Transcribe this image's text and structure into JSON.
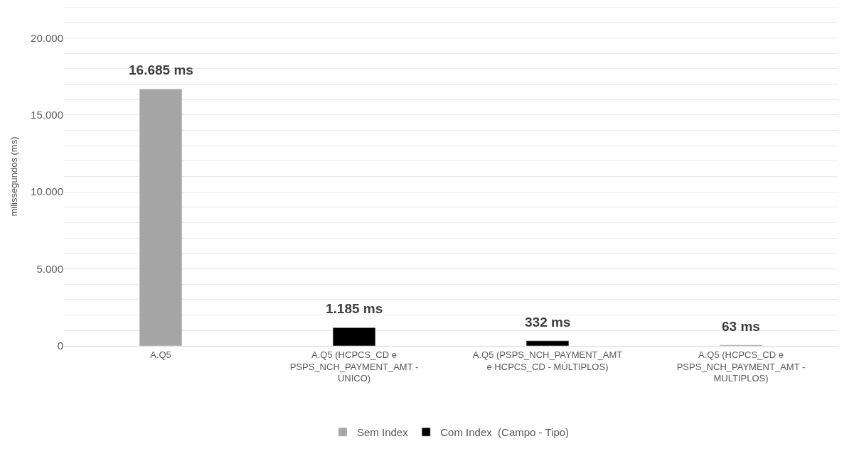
{
  "chart_data": {
    "type": "bar",
    "ylabel": "milissegundos (ms)",
    "categories": [
      "A.Q5",
      "A.Q5 (HCPCS_CD e PSPS_NCH_PAYMENT_AMT - ÚNICO)",
      "A.Q5 (PSPS_NCH_PAYMENT_AMT e HCPCS_CD - MÚLTIPLOS)",
      "A.Q5 (HCPCS_CD e PSPS_NCH_PAYMENT_AMT - MULTIPLOS)"
    ],
    "series": [
      {
        "name": "Sem Index",
        "color": "#a5a5a5",
        "values": [
          16685,
          null,
          null,
          63
        ],
        "value_labels": [
          "16.685 ms",
          null,
          null,
          "63 ms"
        ]
      },
      {
        "name": "Com Index  (Campo - Tipo)",
        "color": "#000000",
        "values": [
          null,
          1185,
          332,
          null
        ],
        "value_labels": [
          null,
          "1.185 ms",
          "332 ms",
          null
        ]
      }
    ],
    "ylim": [
      0,
      22000
    ],
    "yticks": [
      0,
      {
        "value": 1000,
        "label": null
      },
      {
        "value": 2000,
        "label": null
      },
      {
        "value": 3000,
        "label": null
      },
      {
        "value": 4000,
        "label": null
      },
      {
        "value": 5000,
        "label": "5.000"
      },
      {
        "value": 6000,
        "label": null
      },
      {
        "value": 7000,
        "label": null
      },
      {
        "value": 8000,
        "label": null
      },
      {
        "value": 9000,
        "label": null
      },
      {
        "value": 10000,
        "label": "10.000"
      },
      {
        "value": 11000,
        "label": null
      },
      {
        "value": 12000,
        "label": null
      },
      {
        "value": 13000,
        "label": null
      },
      {
        "value": 14000,
        "label": null
      },
      {
        "value": 15000,
        "label": "15.000"
      },
      {
        "value": 16000,
        "label": null
      },
      {
        "value": 17000,
        "label": null
      },
      {
        "value": 18000,
        "label": null
      },
      {
        "value": 19000,
        "label": null
      },
      {
        "value": 20000,
        "label": "20.000"
      },
      {
        "value": 21000,
        "label": null
      },
      {
        "value": 22000,
        "label": null
      }
    ],
    "grid": "y",
    "legend": "bottom"
  }
}
